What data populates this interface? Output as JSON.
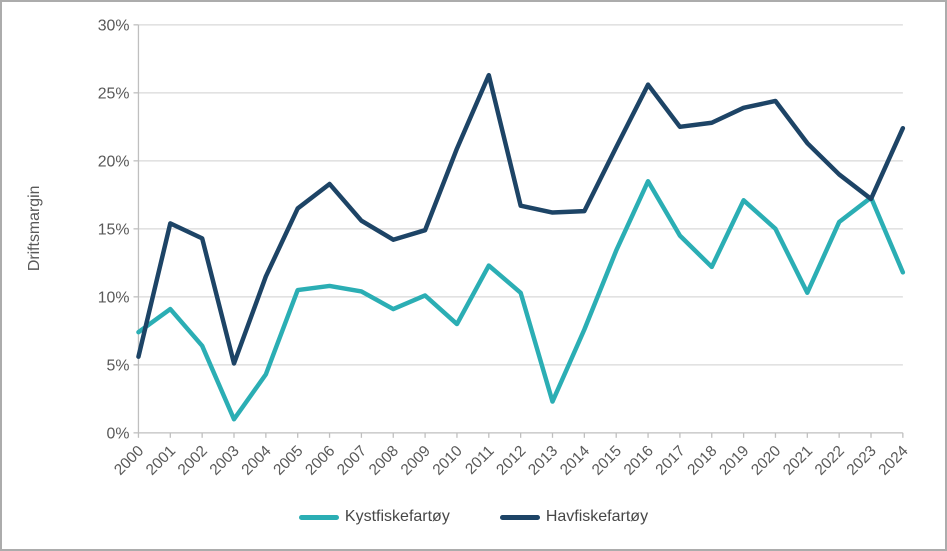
{
  "chart_data": {
    "type": "line",
    "title": "",
    "xlabel": "",
    "ylabel": "Driftsmargin",
    "ylim": [
      0,
      30
    ],
    "y_ticks": [
      0,
      5,
      10,
      15,
      20,
      25,
      30
    ],
    "y_tick_labels": [
      "0%",
      "5%",
      "10%",
      "15%",
      "20%",
      "25%",
      "30%"
    ],
    "categories": [
      "2000",
      "2001",
      "2002",
      "2003",
      "2004",
      "2005",
      "2006",
      "2007",
      "2008",
      "2009",
      "2010",
      "2011",
      "2012",
      "2013",
      "2014",
      "2015",
      "2016",
      "2017",
      "2018",
      "2019",
      "2020",
      "2021",
      "2022",
      "2023",
      "2024"
    ],
    "series": [
      {
        "name": "Kystfiskefartøy",
        "color": "#2BAEB4",
        "values": [
          7.4,
          9.1,
          6.4,
          1.0,
          4.3,
          10.5,
          10.8,
          10.4,
          9.1,
          10.1,
          8.0,
          12.3,
          10.3,
          2.3,
          7.6,
          13.4,
          18.5,
          14.5,
          12.2,
          17.1,
          15.0,
          10.3,
          15.5,
          17.3,
          11.8
        ]
      },
      {
        "name": "Havfiskefartøy",
        "color": "#1D4466",
        "values": [
          5.6,
          15.4,
          14.3,
          5.1,
          11.5,
          16.5,
          18.3,
          15.6,
          14.2,
          14.9,
          20.9,
          26.3,
          16.7,
          16.2,
          16.3,
          21.0,
          25.6,
          22.5,
          22.8,
          23.9,
          24.4,
          21.3,
          19.0,
          17.2,
          22.4
        ]
      }
    ],
    "grid": "horizontal",
    "legend_position": "bottom"
  },
  "style": {
    "gridline_color": "#D9D9D9",
    "axis_color": "#BFBFBF",
    "tick_label_color": "#595959",
    "line_width": 4.5
  }
}
